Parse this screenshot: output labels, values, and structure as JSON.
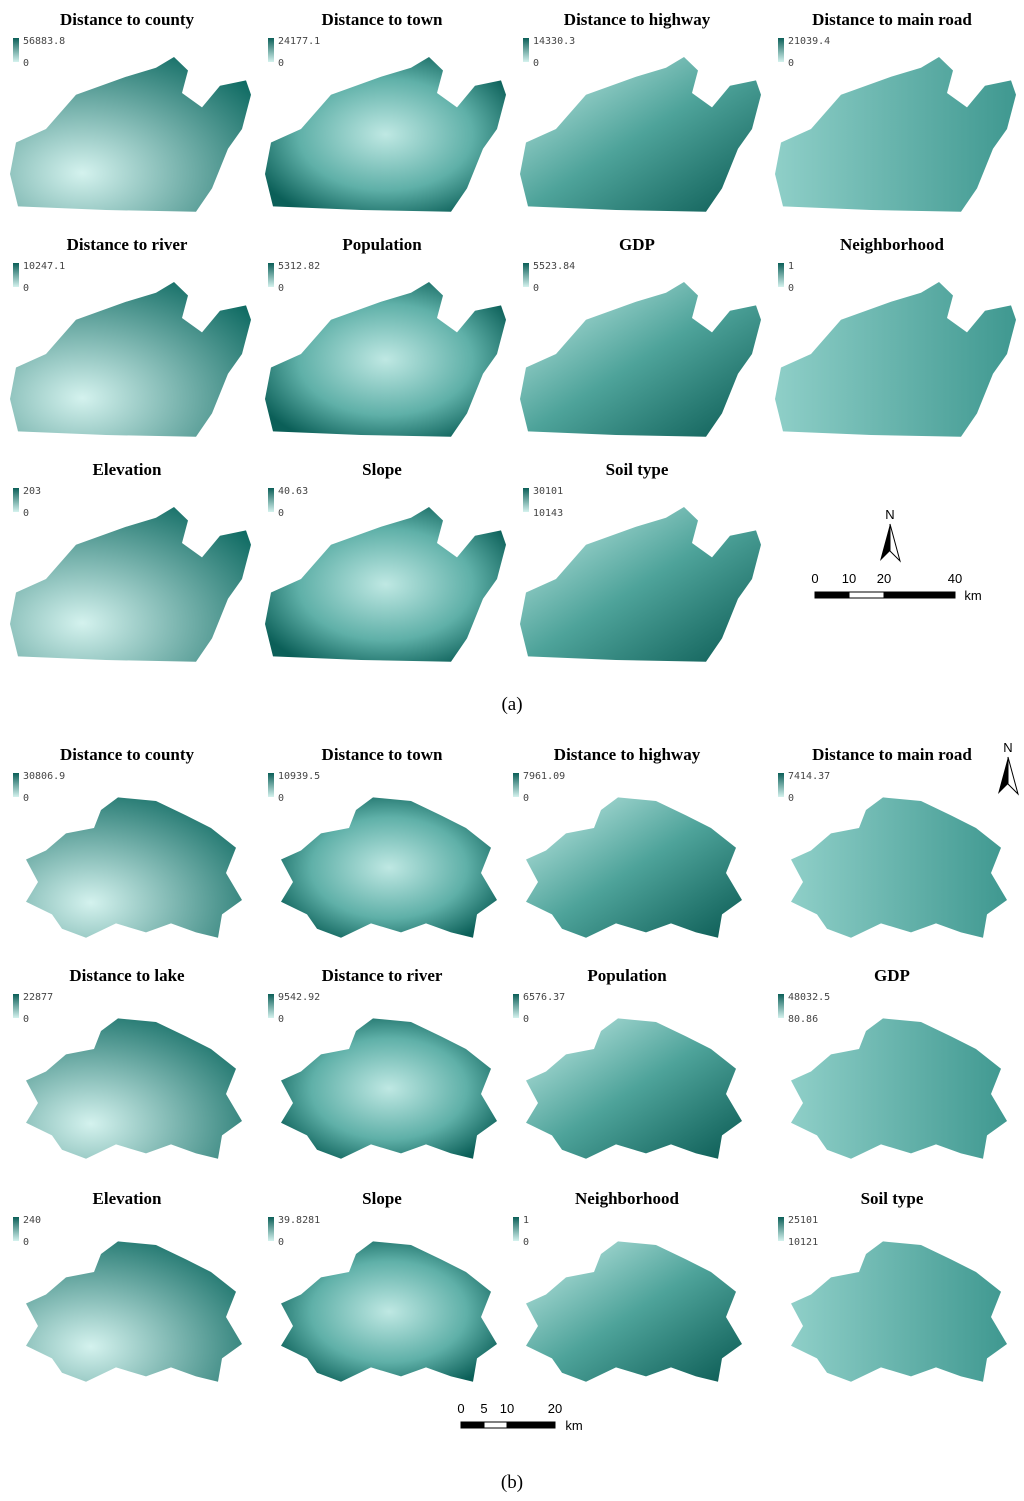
{
  "panel_a": {
    "maps": [
      {
        "title": "Distance to county",
        "max": "56883.8",
        "min": "0"
      },
      {
        "title": "Distance to town",
        "max": "24177.1",
        "min": "0"
      },
      {
        "title": "Distance to highway",
        "max": "14330.3",
        "min": "0"
      },
      {
        "title": "Distance to main road",
        "max": "21039.4",
        "min": "0"
      },
      {
        "title": "Distance to river",
        "max": "10247.1",
        "min": "0"
      },
      {
        "title": "Population",
        "max": "5312.82",
        "min": "0"
      },
      {
        "title": "GDP",
        "max": "5523.84",
        "min": "0"
      },
      {
        "title": "Neighborhood",
        "max": "1",
        "min": "0"
      },
      {
        "title": "Elevation",
        "max": "203",
        "min": "0"
      },
      {
        "title": "Slope",
        "max": "40.63",
        "min": "0"
      },
      {
        "title": "Soil type",
        "max": "30101",
        "min": "10143"
      }
    ],
    "north": "N",
    "scale_labels": [
      "0",
      "10",
      "20",
      "40"
    ],
    "scale_unit": "km",
    "caption": "(a)"
  },
  "panel_b": {
    "maps": [
      {
        "title": "Distance to county",
        "max": "30806.9",
        "min": "0"
      },
      {
        "title": "Distance to town",
        "max": "10939.5",
        "min": "0"
      },
      {
        "title": "Distance to highway",
        "max": "7961.09",
        "min": "0"
      },
      {
        "title": "Distance to main road",
        "max": "7414.37",
        "min": "0"
      },
      {
        "title": "Distance to lake",
        "max": "22877",
        "min": "0"
      },
      {
        "title": "Distance to river",
        "max": "9542.92",
        "min": "0"
      },
      {
        "title": "Population",
        "max": "6576.37",
        "min": "0"
      },
      {
        "title": "GDP",
        "max": "48032.5",
        "min": "80.86"
      },
      {
        "title": "Elevation",
        "max": "240",
        "min": "0"
      },
      {
        "title": "Slope",
        "max": "39.8281",
        "min": "0"
      },
      {
        "title": "Neighborhood",
        "max": "1",
        "min": "0"
      },
      {
        "title": "Soil type",
        "max": "25101",
        "min": "10121"
      }
    ],
    "north": "N",
    "scale_labels": [
      "0",
      "5",
      "10",
      "20"
    ],
    "scale_unit": "km",
    "caption": "(b)"
  }
}
